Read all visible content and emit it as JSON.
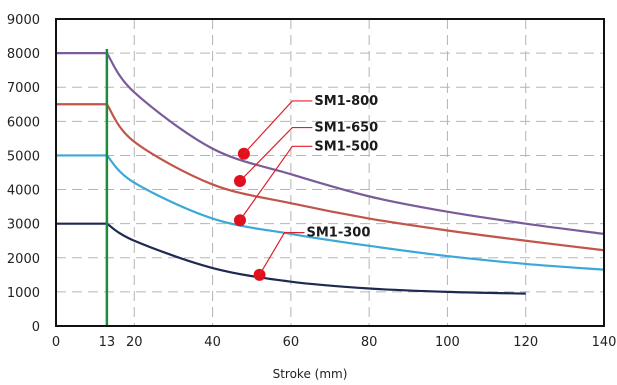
{
  "chart_data": {
    "type": "line",
    "title": "",
    "xlabel": "Stroke (mm)",
    "ylabel": "",
    "xlim": [
      0,
      140
    ],
    "ylim": [
      0,
      9000
    ],
    "x_ticks": [
      0,
      13,
      20,
      40,
      60,
      80,
      100,
      120,
      140
    ],
    "y_ticks": [
      0,
      1000,
      2000,
      3000,
      4000,
      5000,
      6000,
      7000,
      8000,
      9000
    ],
    "grid": true,
    "x_tick_labels": [
      "0",
      "13",
      "20",
      "40",
      "60",
      "80",
      "100",
      "120",
      "140"
    ],
    "y_tick_labels": [
      "0",
      "1000",
      "2000",
      "3000",
      "4000",
      "5000",
      "6000",
      "7000",
      "8000",
      "9000"
    ],
    "vertical_marker": {
      "x": 13,
      "color": "#1e8a3c"
    },
    "series": [
      {
        "name": "SM1-800",
        "color": "#7a5c9a",
        "x": [
          0,
          13,
          20,
          40,
          60,
          80,
          100,
          120,
          140
        ],
        "y": [
          8000,
          8000,
          6850,
          5200,
          4450,
          3800,
          3350,
          3000,
          2700
        ],
        "marker": {
          "x": 48,
          "y": 5050
        }
      },
      {
        "name": "SM1-650",
        "color": "#c0554a",
        "x": [
          0,
          13,
          20,
          40,
          60,
          80,
          100,
          120,
          140
        ],
        "y": [
          6500,
          6500,
          5400,
          4150,
          3600,
          3150,
          2800,
          2500,
          2220
        ],
        "marker": {
          "x": 47,
          "y": 4250
        }
      },
      {
        "name": "SM1-500",
        "color": "#3aa8d8",
        "x": [
          0,
          13,
          20,
          40,
          60,
          80,
          100,
          120,
          140
        ],
        "y": [
          5000,
          5000,
          4200,
          3150,
          2700,
          2350,
          2050,
          1820,
          1650
        ],
        "marker": {
          "x": 47,
          "y": 3100
        }
      },
      {
        "name": "SM1-300",
        "color": "#1c2a52",
        "x": [
          0,
          13,
          20,
          40,
          60,
          80,
          100,
          120
        ],
        "y": [
          3000,
          3000,
          2500,
          1700,
          1300,
          1100,
          1000,
          950
        ],
        "marker": {
          "x": 52,
          "y": 1500
        }
      }
    ],
    "callouts": [
      {
        "series": "SM1-800",
        "label": "SM1-800",
        "text_x": 66,
        "text_y": 6480
      },
      {
        "series": "SM1-650",
        "label": "SM1-650",
        "text_x": 66,
        "text_y": 5700
      },
      {
        "series": "SM1-500",
        "label": "SM1-500",
        "text_x": 66,
        "text_y": 5150
      },
      {
        "series": "SM1-300",
        "label": "SM1-300",
        "text_x": 64,
        "text_y": 2620
      }
    ]
  }
}
